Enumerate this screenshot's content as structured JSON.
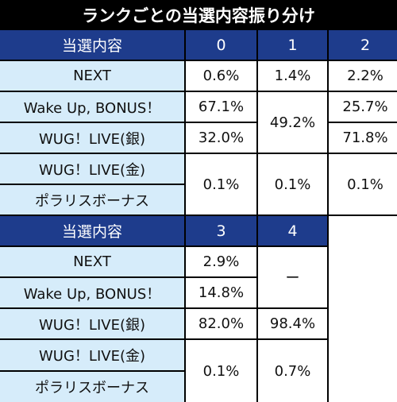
{
  "title": "ランクごとの当選内容振り分け",
  "table1": {
    "header": [
      "当選内容",
      "0",
      "1",
      "2"
    ],
    "rows": {
      "next": {
        "label": "NEXT",
        "r0": "0.6%",
        "r1": "1.4%",
        "r2": "2.2%"
      },
      "wakeup": {
        "label": "Wake Up, BONUS！",
        "r0": "67.1%",
        "r2": "25.7%"
      },
      "wug_silver": {
        "label": "WUG！LIVE(銀)",
        "r0": "32.0%",
        "r2": "71.8%"
      },
      "r1_merged": "49.2%",
      "wug_gold_label": "WUG！LIVE(金)",
      "polaris_label": "ポラリスボーナス",
      "gold_polaris": {
        "r0": "0.1%",
        "r1": "0.1%",
        "r2": "0.1%"
      }
    }
  },
  "table2": {
    "header": [
      "当選内容",
      "3",
      "4"
    ],
    "rows": {
      "next": {
        "label": "NEXT",
        "r3": "2.9%"
      },
      "wakeup": {
        "label": "Wake Up, BONUS！",
        "r3": "14.8%"
      },
      "r4_merged": "ー",
      "wug_silver": {
        "label": "WUG！LIVE(銀)",
        "r3": "82.0%",
        "r4": "98.4%"
      },
      "wug_gold_label": "WUG！LIVE(金)",
      "polaris_label": "ポラリスボーナス",
      "gold_polaris": {
        "r3": "0.1%",
        "r4": "0.7%"
      }
    }
  }
}
